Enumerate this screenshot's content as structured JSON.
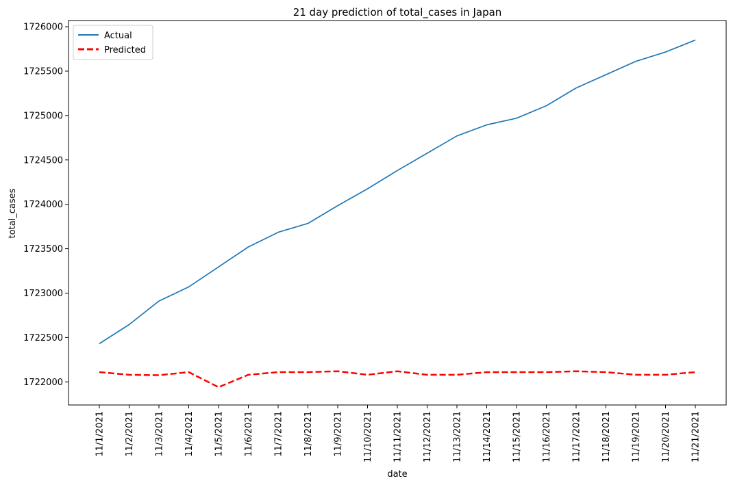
{
  "chart_data": {
    "type": "line",
    "title": "21 day prediction of total_cases in Japan",
    "xlabel": "date",
    "ylabel": "total_cases",
    "categories": [
      "11/1/2021",
      "11/2/2021",
      "11/3/2021",
      "11/4/2021",
      "11/5/2021",
      "11/6/2021",
      "11/7/2021",
      "11/8/2021",
      "11/9/2021",
      "11/10/2021",
      "11/11/2021",
      "11/12/2021",
      "11/13/2021",
      "11/14/2021",
      "11/15/2021",
      "11/16/2021",
      "11/17/2021",
      "11/18/2021",
      "11/19/2021",
      "11/20/2021",
      "11/21/2021"
    ],
    "yticks": [
      1722000,
      1722500,
      1723000,
      1723500,
      1724000,
      1724500,
      1725000,
      1725500,
      1726000
    ],
    "ylim": [
      1721740,
      1726070
    ],
    "grid": false,
    "legend_position": "top-left",
    "series": [
      {
        "name": "Actual",
        "color": "#1f77b4",
        "style": "solid",
        "values": [
          1722430,
          1722645,
          1722910,
          1723070,
          1723295,
          1723520,
          1723685,
          1723785,
          1723985,
          1724175,
          1724380,
          1724575,
          1724770,
          1724895,
          1724970,
          1725110,
          1725310,
          1725460,
          1725610,
          1725715,
          1725850
        ]
      },
      {
        "name": "Predicted",
        "color": "#ff0000",
        "style": "dashed",
        "values": [
          1722110,
          1722080,
          1722075,
          1722110,
          1721940,
          1722080,
          1722110,
          1722110,
          1722120,
          1722080,
          1722120,
          1722080,
          1722080,
          1722110,
          1722110,
          1722110,
          1722120,
          1722110,
          1722080,
          1722080,
          1722110
        ]
      }
    ]
  }
}
